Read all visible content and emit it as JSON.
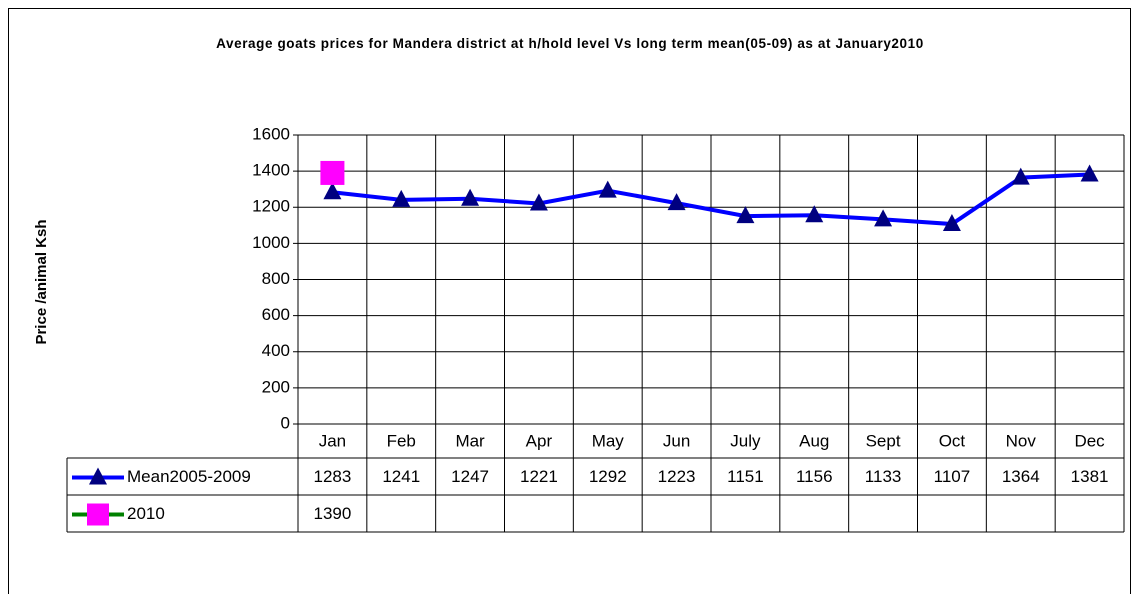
{
  "chart_data": {
    "type": "line",
    "title": "Average goats prices for Mandera district at h/hold level Vs long term mean(05-09) as at January2010",
    "y_label": "Price /animal Ksh",
    "categories": [
      "Jan",
      "Feb",
      "Mar",
      "Apr",
      "May",
      "Jun",
      "July",
      "Aug",
      "Sept",
      "Oct",
      "Nov",
      "Dec"
    ],
    "series": [
      {
        "name": "Mean2005-2009",
        "color": "#0000ff",
        "marker": "triangle",
        "marker_color": "#000080",
        "values": [
          1283,
          1241,
          1247,
          1221,
          1292,
          1223,
          1151,
          1156,
          1133,
          1107,
          1364,
          1381
        ]
      },
      {
        "name": "2010",
        "color": "#008000",
        "marker": "square",
        "marker_color": "#ff00ff",
        "values": [
          1390,
          null,
          null,
          null,
          null,
          null,
          null,
          null,
          null,
          null,
          null,
          null
        ]
      }
    ],
    "ylim": [
      0,
      1600
    ],
    "yticks": [
      0,
      200,
      400,
      600,
      800,
      1000,
      1200,
      1400,
      1600
    ],
    "grid": true,
    "data_table": true
  }
}
